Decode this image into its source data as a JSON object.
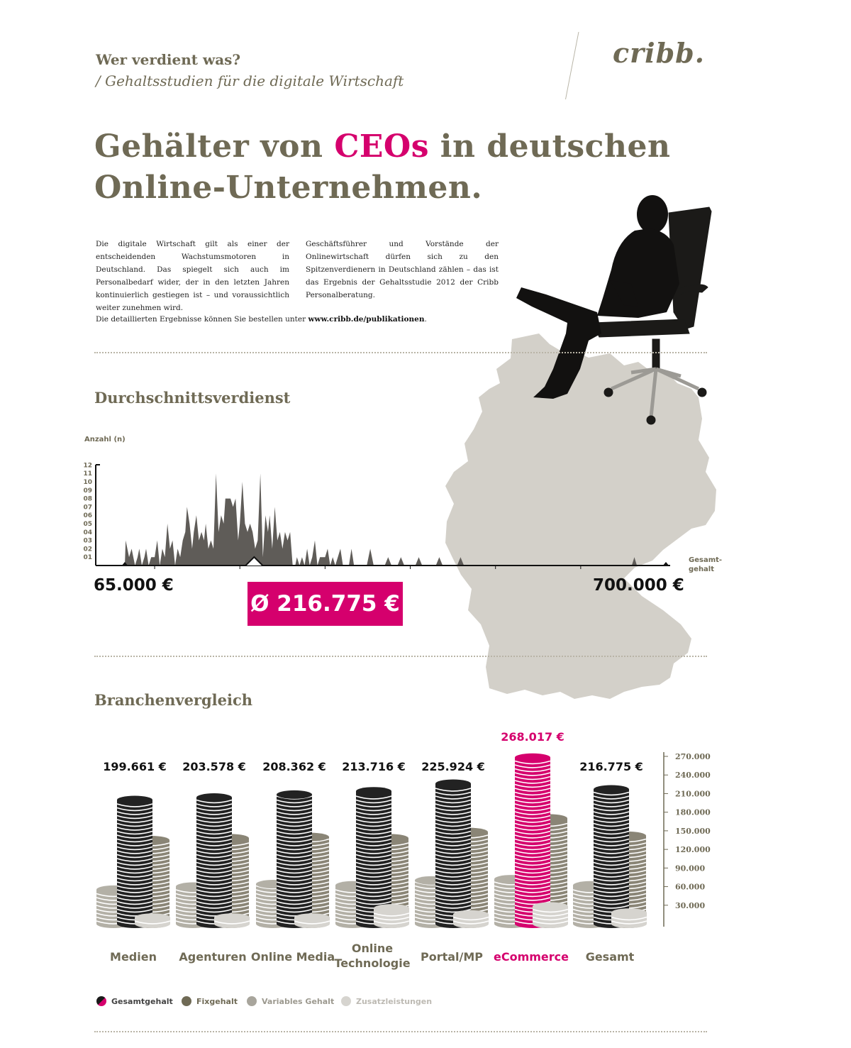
{
  "header": {
    "title": "Wer verdient was?",
    "subtitle": "/ Gehaltsstudien für die digitale Wirtschaft",
    "logo": "cribb."
  },
  "headline": {
    "part1": "Gehälter von ",
    "highlight": "CEOs",
    "part2": " in deutschen",
    "line2": "Online-Unternehmen."
  },
  "intro": {
    "left": "Die digitale Wirtschaft gilt als einer der entscheidenden Wachstumsmotoren in Deutschland. Das spiegelt sich auch im Personalbedarf wider, der in den letzten Jahren kontinuierlich gestiegen ist – und voraussichtlich weiter zunehmen wird.",
    "right": "Geschäftsführer und Vorstände der Onlinewirtschaft dürfen sich zu den Spitzenverdienern in Deutschland zählen – das ist das Ergebnis der Gehaltsstudie 2012 der Cribb Personalberatung.",
    "order_prefix": "Die detaillierten Ergebnisse können Sie bestellen unter ",
    "order_link": "www.cribb.de/publikationen",
    "order_suffix": "."
  },
  "colors": {
    "olive": "#6f6a55",
    "magenta": "#d5006d",
    "map_grey": "#d3d0c9",
    "dark": "#222222",
    "fix": "#8a8576",
    "variable": "#b3b0a6",
    "extras": "#d6d4cf"
  },
  "chart_data": [
    {
      "type": "area",
      "title": "Durchschnittsverdienst",
      "ylabel": "Anzahl (n)",
      "xlabel": "Gesamt-\ngehalt",
      "yticks": [
        "01",
        "02",
        "03",
        "04",
        "05",
        "06",
        "07",
        "08",
        "09",
        "10",
        "11",
        "12"
      ],
      "ylim": [
        0,
        12
      ],
      "xlim": [
        65000,
        700000
      ],
      "x_min_label": "65.000 €",
      "x_max_label": "700.000 €",
      "average_label": "Ø 216.775 €",
      "average_value": 216775,
      "points": [
        [
          65000,
          0
        ],
        [
          66000,
          3
        ],
        [
          70000,
          1
        ],
        [
          73000,
          2
        ],
        [
          77000,
          0
        ],
        [
          80000,
          1
        ],
        [
          82000,
          2
        ],
        [
          85000,
          0
        ],
        [
          88000,
          1
        ],
        [
          90000,
          2
        ],
        [
          93000,
          0
        ],
        [
          96000,
          1
        ],
        [
          100000,
          1
        ],
        [
          103000,
          3
        ],
        [
          106000,
          0
        ],
        [
          109000,
          2
        ],
        [
          112000,
          1
        ],
        [
          115000,
          5
        ],
        [
          118000,
          2
        ],
        [
          121000,
          3
        ],
        [
          124000,
          0
        ],
        [
          127000,
          2
        ],
        [
          130000,
          1
        ],
        [
          133000,
          3
        ],
        [
          136000,
          4
        ],
        [
          138000,
          7
        ],
        [
          141000,
          5
        ],
        [
          144000,
          2
        ],
        [
          146000,
          4
        ],
        [
          149000,
          6
        ],
        [
          152000,
          3
        ],
        [
          155000,
          4
        ],
        [
          158000,
          3
        ],
        [
          160000,
          5
        ],
        [
          163000,
          2
        ],
        [
          166000,
          3
        ],
        [
          169000,
          2
        ],
        [
          172000,
          11
        ],
        [
          175000,
          4
        ],
        [
          178000,
          6
        ],
        [
          181000,
          5
        ],
        [
          183000,
          8
        ],
        [
          186000,
          8
        ],
        [
          189000,
          8
        ],
        [
          192000,
          7
        ],
        [
          195000,
          8
        ],
        [
          198000,
          3
        ],
        [
          200000,
          5
        ],
        [
          203000,
          10
        ],
        [
          206000,
          5
        ],
        [
          209000,
          4
        ],
        [
          212000,
          5
        ],
        [
          215000,
          4
        ],
        [
          218000,
          2
        ],
        [
          221000,
          3
        ],
        [
          224000,
          11
        ],
        [
          227000,
          1
        ],
        [
          230000,
          6
        ],
        [
          233000,
          4
        ],
        [
          235000,
          6
        ],
        [
          238000,
          2
        ],
        [
          241000,
          7
        ],
        [
          244000,
          3
        ],
        [
          247000,
          4
        ],
        [
          250000,
          2
        ],
        [
          253000,
          4
        ],
        [
          256000,
          3
        ],
        [
          259000,
          4
        ],
        [
          262000,
          0
        ],
        [
          265000,
          0
        ],
        [
          267000,
          1
        ],
        [
          270000,
          0
        ],
        [
          273000,
          1
        ],
        [
          276000,
          0
        ],
        [
          279000,
          2
        ],
        [
          282000,
          0
        ],
        [
          285000,
          1
        ],
        [
          288000,
          3
        ],
        [
          291000,
          0
        ],
        [
          294000,
          1
        ],
        [
          297000,
          1
        ],
        [
          300000,
          1
        ],
        [
          303000,
          2
        ],
        [
          306000,
          0
        ],
        [
          309000,
          1
        ],
        [
          312000,
          0
        ],
        [
          315000,
          1
        ],
        [
          318000,
          2
        ],
        [
          321000,
          0
        ],
        [
          328000,
          0
        ],
        [
          331000,
          2
        ],
        [
          334000,
          0
        ],
        [
          349000,
          0
        ],
        [
          353000,
          2
        ],
        [
          357000,
          0
        ],
        [
          370000,
          0
        ],
        [
          374000,
          1
        ],
        [
          378000,
          0
        ],
        [
          385000,
          0
        ],
        [
          389000,
          1
        ],
        [
          393000,
          0
        ],
        [
          406000,
          0
        ],
        [
          410000,
          1
        ],
        [
          414000,
          0
        ],
        [
          430000,
          0
        ],
        [
          434000,
          1
        ],
        [
          438000,
          0
        ],
        [
          455000,
          0
        ],
        [
          459000,
          1
        ],
        [
          463000,
          0
        ],
        [
          660000,
          0
        ],
        [
          663000,
          1
        ],
        [
          666000,
          0
        ],
        [
          700000,
          0
        ]
      ]
    },
    {
      "type": "bar",
      "title": "Branchenvergleich",
      "categories": [
        "Medien",
        "Agenturen",
        "Online Media",
        "Online\nTechnologie",
        "Portal/MP",
        "eCommerce",
        "Gesamt"
      ],
      "category_lines": [
        [
          "Medien"
        ],
        [
          "Agenturen"
        ],
        [
          "Online Media"
        ],
        [
          "Online",
          "Technologie"
        ],
        [
          "Portal/MP"
        ],
        [
          "eCommerce"
        ],
        [
          "Gesamt"
        ]
      ],
      "value_labels": [
        "199.661 €",
        "203.578 €",
        "208.362 €",
        "213.716 €",
        "225.924 €",
        "268.017 €",
        "216.775 €"
      ],
      "highlight_index": 5,
      "yticks": [
        "30.000",
        "60.000",
        "90.000",
        "120.000",
        "150.000",
        "180.000",
        "210.000",
        "240.000",
        "270.000"
      ],
      "ylim": [
        0,
        270000
      ],
      "series": [
        {
          "name": "Gesamtgehalt",
          "values": [
            199661,
            203578,
            208362,
            213716,
            225924,
            268017,
            216775
          ]
        },
        {
          "name": "Fixgehalt",
          "values": [
            135000,
            138000,
            140000,
            138000,
            148000,
            170000,
            142000
          ]
        },
        {
          "name": "Variables Gehalt",
          "values": [
            55000,
            60000,
            64000,
            62000,
            70000,
            72000,
            62000
          ]
        },
        {
          "name": "Zusatzleistungen",
          "values": [
            10000,
            10000,
            10000,
            25000,
            15000,
            28000,
            18000
          ]
        }
      ]
    }
  ],
  "legend": [
    {
      "label": "Gesamtgehalt",
      "color": "#1a1a1a"
    },
    {
      "label": "Fixgehalt",
      "color": "#6f6a55"
    },
    {
      "label": "Variables Gehalt",
      "color": "#a8a59c"
    },
    {
      "label": "Zusatzleistungen",
      "color": "#d6d4cf"
    }
  ]
}
